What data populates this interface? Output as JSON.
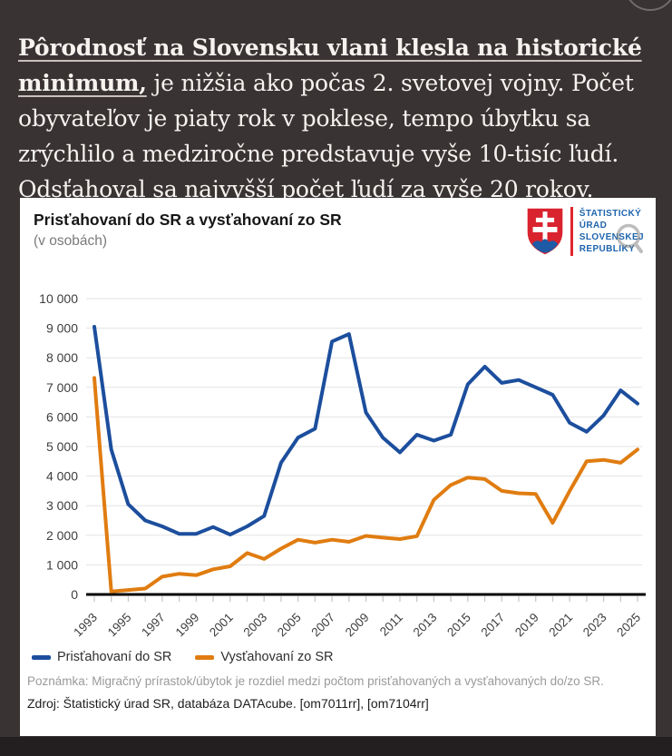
{
  "intro": {
    "link_text": "Pôrodnosť na Slovensku vlani klesla na historické minimum,",
    "rest_text": " je nižšia ako počas 2. svetovej vojny. Počet obyvateľov je piaty rok v poklese, tempo úbytku sa zrýchlilo a medziročne predstavuje vyše 10-tisíc ľudí. Odsťahoval sa najvyšší počet ľudí za vyše 20 rokov."
  },
  "card": {
    "title": "Prisťahovaní do SR a vysťahovaní zo SR",
    "subtitle": "(v osobách)",
    "logo_lines": {
      "l1": "ŠTATISTICKÝ",
      "l2": "ÚRAD",
      "l3": "SLOVENSKEJ",
      "l4": "REPUBLIKY"
    },
    "note": "Poznámka: Migračný prírastok/úbytok je rozdiel medzi počtom prisťahovaných a vysťahovaných do/zo SR.",
    "source": "Zdroj: Štatistický úrad SR, databáza DATAcube. [om7011rr], [om7104rr]"
  },
  "colors": {
    "immigration_line": "#1c4e9d",
    "emigration_line": "#e07c10",
    "grid": "#e3e3e3",
    "axis": "#000000",
    "logo_blue": "#1e64ad",
    "logo_red": "#d9232e"
  },
  "chart_data": {
    "type": "line",
    "title": "Prisťahovaní do SR a vysťahovaní zo SR",
    "subtitle": "(v osobách)",
    "x": [
      1993,
      1994,
      1995,
      1996,
      1997,
      1998,
      1999,
      2000,
      2001,
      2002,
      2003,
      2004,
      2005,
      2006,
      2007,
      2008,
      2009,
      2010,
      2011,
      2012,
      2013,
      2014,
      2015,
      2016,
      2017,
      2018,
      2019,
      2020,
      2021,
      2022,
      2023,
      2024,
      2025
    ],
    "series": [
      {
        "name": "Prisťahovaní do SR",
        "color": "#1c4e9d",
        "values": [
          9050,
          4900,
          3050,
          2500,
          2300,
          2050,
          2050,
          2280,
          2020,
          2300,
          2650,
          4450,
          5300,
          5600,
          8550,
          8800,
          6150,
          5300,
          4800,
          5400,
          5200,
          5400,
          7100,
          7700,
          7150,
          7250,
          7000,
          6750,
          5800,
          5500,
          6050,
          6900,
          6450
        ]
      },
      {
        "name": "Vysťahovaní zo SR",
        "color": "#e07c10",
        "values": [
          7320,
          100,
          150,
          200,
          600,
          700,
          650,
          850,
          950,
          1400,
          1200,
          1550,
          1850,
          1750,
          1850,
          1780,
          1980,
          1920,
          1870,
          1970,
          3200,
          3700,
          3950,
          3900,
          3500,
          3420,
          3400,
          2420,
          3500,
          4500,
          4550,
          4450,
          4900
        ]
      }
    ],
    "ylim": [
      0,
      10000
    ],
    "ytick_step": 1000,
    "x_tick_every_year": true,
    "x_label_every_n_years": 2,
    "grid": true,
    "legend_position": "bottom"
  }
}
